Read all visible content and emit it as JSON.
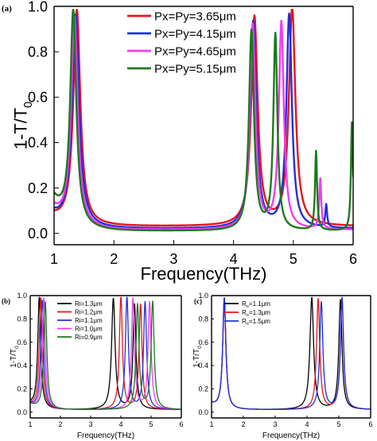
{
  "colors": {
    "red": "#e8141a",
    "blue": "#1f2fe0",
    "magenta": "#f03cf0",
    "green": "#1d7a1d",
    "black": "#000000"
  },
  "chart_data": [
    {
      "id": "a",
      "panel_label": "(a)",
      "type": "line",
      "xlabel": "Frequency(THz)",
      "ylabel": "1-T/T0",
      "ylabel_main": "1-T/T",
      "ylabel_sub": "0",
      "xlim": [
        1,
        6
      ],
      "ylim": [
        -0.05,
        1.0
      ],
      "xticks": [
        1,
        2,
        3,
        4,
        5,
        6
      ],
      "xtick_labels": [
        "1",
        "2",
        "3",
        "4",
        "5",
        "6"
      ],
      "yticks": [
        0.0,
        0.2,
        0.4,
        0.6,
        0.8,
        1.0
      ],
      "ytick_labels": [
        "0.0",
        "0.2",
        "0.4",
        "0.6",
        "0.8",
        "1.0"
      ],
      "grid": false,
      "legend_position": "top-center",
      "series": [
        {
          "name": "Px=Py=3.65μm",
          "color": "#e8141a",
          "baseline": 0.03,
          "edge": 0.04,
          "peaks": [
            [
              1.38,
              0.95,
              0.07
            ],
            [
              4.35,
              0.92,
              0.065
            ],
            [
              4.98,
              0.96,
              0.065
            ]
          ]
        },
        {
          "name": "Px=Py=4.15μm",
          "color": "#1f2fe0",
          "baseline": 0.02,
          "edge": 0.06,
          "peaks": [
            [
              1.36,
              0.93,
              0.07
            ],
            [
              4.33,
              0.91,
              0.06
            ],
            [
              4.93,
              0.94,
              0.055
            ],
            [
              5.55,
              0.1,
              0.018
            ]
          ]
        },
        {
          "name": "Px=Py=4.65μm",
          "color": "#f03cf0",
          "baseline": 0.015,
          "edge": 0.09,
          "peaks": [
            [
              1.34,
              0.92,
              0.065
            ],
            [
              4.32,
              0.9,
              0.055
            ],
            [
              4.8,
              0.91,
              0.05
            ],
            [
              5.45,
              0.22,
              0.02
            ]
          ]
        },
        {
          "name": "Px=Py=5.15μm",
          "color": "#1d7a1d",
          "baseline": 0.01,
          "edge": 0.14,
          "peaks": [
            [
              1.32,
              0.94,
              0.06
            ],
            [
              4.3,
              0.88,
              0.05
            ],
            [
              4.7,
              0.86,
              0.04
            ],
            [
              5.38,
              0.35,
              0.02
            ],
            [
              5.98,
              0.48,
              0.02
            ]
          ]
        }
      ]
    },
    {
      "id": "b",
      "panel_label": "(b)",
      "type": "line",
      "xlabel": "Frequency(THz)",
      "ylabel": "1-T/T0",
      "ylabel_main": "1-T/T",
      "ylabel_sub": "0",
      "xlim": [
        1,
        6
      ],
      "ylim": [
        -0.05,
        1.0
      ],
      "xticks": [
        1,
        2,
        3,
        4,
        5,
        6
      ],
      "xtick_labels": [
        "1",
        "2",
        "3",
        "4",
        "5",
        "6"
      ],
      "yticks": [
        0.0,
        0.2,
        0.4,
        0.6,
        0.8,
        1.0
      ],
      "ytick_labels": [
        "0.0",
        "0.2",
        "0.4",
        "0.6",
        "0.8",
        "1.0"
      ],
      "grid": false,
      "legend_position": "top-center",
      "series": [
        {
          "name": "Ri=1.3μm",
          "color": "#000000",
          "baseline": 0.02,
          "edge": 0.05,
          "peaks": [
            [
              1.3,
              0.95,
              0.06
            ],
            [
              3.75,
              0.95,
              0.07
            ],
            [
              4.45,
              0.9,
              0.06
            ]
          ]
        },
        {
          "name": "Ri=1.2μm",
          "color": "#e8141a",
          "baseline": 0.02,
          "edge": 0.05,
          "peaks": [
            [
              1.35,
              0.95,
              0.06
            ],
            [
              4.0,
              0.97,
              0.06
            ],
            [
              4.65,
              0.9,
              0.06
            ]
          ]
        },
        {
          "name": "Ri=1.1μm",
          "color": "#1f2fe0",
          "baseline": 0.02,
          "edge": 0.05,
          "peaks": [
            [
              1.4,
              0.93,
              0.06
            ],
            [
              4.2,
              0.97,
              0.06
            ],
            [
              4.8,
              0.92,
              0.06
            ]
          ]
        },
        {
          "name": "Ri=1.0μm",
          "color": "#f03cf0",
          "baseline": 0.02,
          "edge": 0.05,
          "peaks": [
            [
              1.45,
              0.95,
              0.06
            ],
            [
              4.4,
              0.95,
              0.06
            ],
            [
              4.95,
              0.92,
              0.06
            ]
          ]
        },
        {
          "name": "Ri=0.9μm",
          "color": "#1d7a1d",
          "baseline": 0.02,
          "edge": 0.05,
          "peaks": [
            [
              1.5,
              0.92,
              0.06
            ],
            [
              4.55,
              0.9,
              0.06
            ],
            [
              5.05,
              0.92,
              0.06
            ]
          ]
        }
      ]
    },
    {
      "id": "c",
      "panel_label": "(c)",
      "type": "line",
      "xlabel": "Frequency(THz)",
      "ylabel": "1-T/T0",
      "ylabel_main": "1-T/T",
      "ylabel_sub": "0",
      "xlim": [
        1,
        6
      ],
      "ylim": [
        -0.05,
        1.0
      ],
      "xticks": [
        1,
        2,
        3,
        4,
        5,
        6
      ],
      "xtick_labels": [
        "1",
        "2",
        "3",
        "4",
        "5",
        "6"
      ],
      "yticks": [
        0.0,
        0.2,
        0.4,
        0.6,
        0.8,
        1.0
      ],
      "ytick_labels": [
        "0.0",
        "0.2",
        "0.4",
        "0.6",
        "0.8",
        "1.0"
      ],
      "grid": false,
      "legend_position": "top-left",
      "series": [
        {
          "name": "Ro=1.1μm",
          "name_main": "R",
          "name_sub": "o",
          "name_rest": "=1.1μm",
          "color": "#000000",
          "baseline": 0.02,
          "edge": 0.05,
          "peaks": [
            [
              1.4,
              0.95,
              0.06
            ],
            [
              4.15,
              0.96,
              0.07
            ],
            [
              5.05,
              0.94,
              0.06
            ]
          ]
        },
        {
          "name": "Ro=1.3μm",
          "name_main": "R",
          "name_sub": "o",
          "name_rest": "=1.3μm",
          "color": "#e8141a",
          "baseline": 0.02,
          "edge": 0.05,
          "peaks": [
            [
              1.4,
              0.94,
              0.06
            ],
            [
              4.35,
              0.95,
              0.06
            ],
            [
              5.1,
              0.95,
              0.06
            ]
          ]
        },
        {
          "name": "Ro=1.5μm",
          "name_main": "R",
          "name_sub": "o",
          "name_rest": "=1.5μm",
          "color": "#1f2fe0",
          "baseline": 0.02,
          "edge": 0.05,
          "peaks": [
            [
              1.4,
              0.94,
              0.06
            ],
            [
              4.45,
              0.92,
              0.06
            ],
            [
              5.1,
              0.96,
              0.06
            ]
          ]
        }
      ]
    }
  ]
}
